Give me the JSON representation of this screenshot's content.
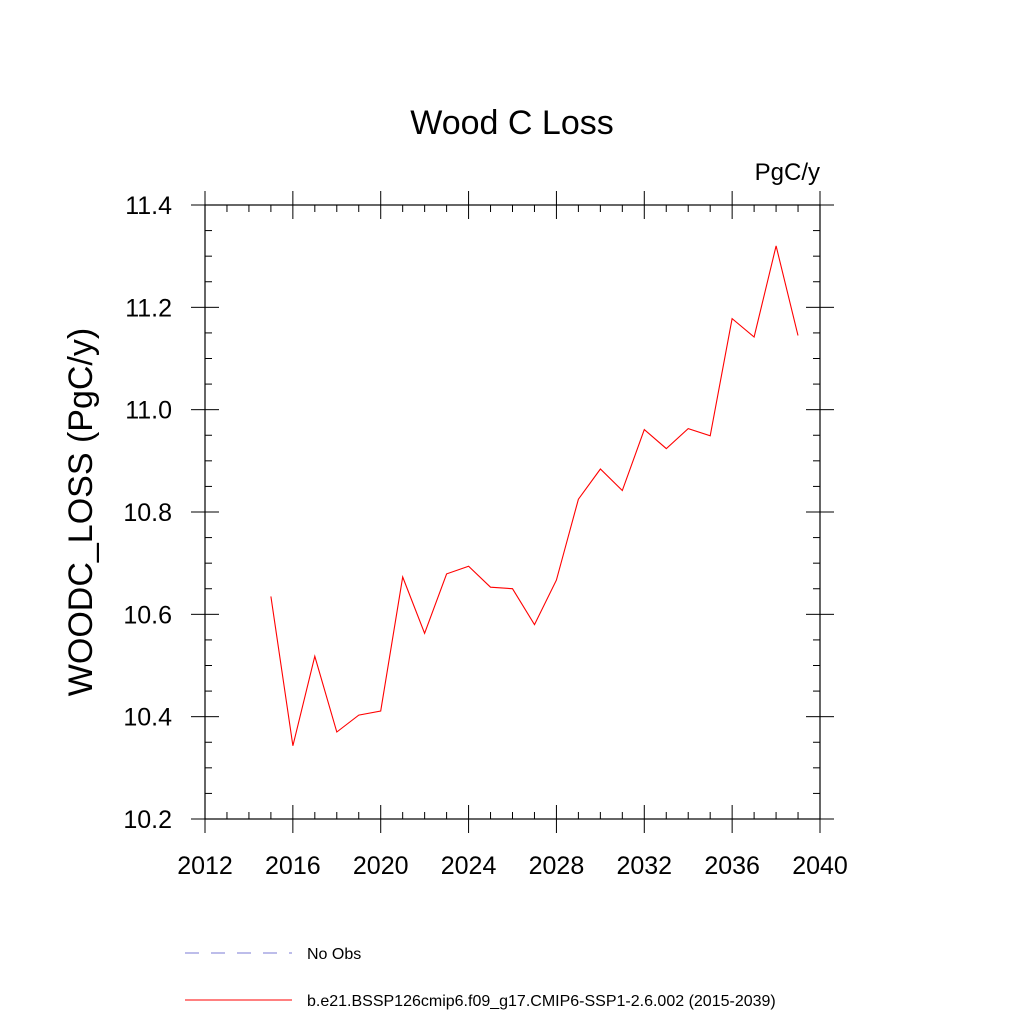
{
  "chart_data": {
    "type": "line",
    "title": "Wood C Loss",
    "units_label": "PgC/y",
    "ylabel": "WOODC_LOSS  (PgC/y)",
    "xlabel": "",
    "xlim": [
      2012,
      2040
    ],
    "ylim": [
      10.2,
      11.4
    ],
    "x_ticks": [
      2012,
      2016,
      2020,
      2024,
      2028,
      2032,
      2036,
      2040
    ],
    "x_tick_labels": [
      "2012",
      "2016",
      "2020",
      "2024",
      "2028",
      "2032",
      "2036",
      "2040"
    ],
    "y_ticks": [
      10.2,
      10.4,
      10.6,
      10.8,
      11.0,
      11.2,
      11.4
    ],
    "y_tick_labels": [
      "10.2",
      "10.4",
      "10.6",
      "10.8",
      "11.0",
      "11.2",
      "11.4"
    ],
    "grid": false,
    "legend_position": "bottom",
    "series": [
      {
        "name": "b.e21.BSSP126cmip6.f09_g17.CMIP6-SSP1-2.6.002 (2015-2039)",
        "color": "#ff0000",
        "style": "solid",
        "x": [
          2015,
          2016,
          2017,
          2018,
          2019,
          2020,
          2021,
          2022,
          2023,
          2024,
          2025,
          2026,
          2027,
          2028,
          2029,
          2030,
          2031,
          2032,
          2033,
          2034,
          2035,
          2036,
          2037,
          2038,
          2039
        ],
        "y": [
          10.635,
          10.343,
          10.518,
          10.37,
          10.403,
          10.411,
          10.673,
          10.563,
          10.679,
          10.694,
          10.653,
          10.65,
          10.58,
          10.667,
          10.825,
          10.884,
          10.842,
          10.961,
          10.924,
          10.963,
          10.949,
          11.178,
          11.142,
          11.32,
          11.145
        ]
      }
    ],
    "legend_entries": [
      {
        "label": "No Obs",
        "color": "#7b7bd6",
        "style": "dashed"
      },
      {
        "label": "b.e21.BSSP126cmip6.f09_g17.CMIP6-SSP1-2.6.002 (2015-2039)",
        "color": "#ff0000",
        "style": "solid"
      }
    ]
  }
}
